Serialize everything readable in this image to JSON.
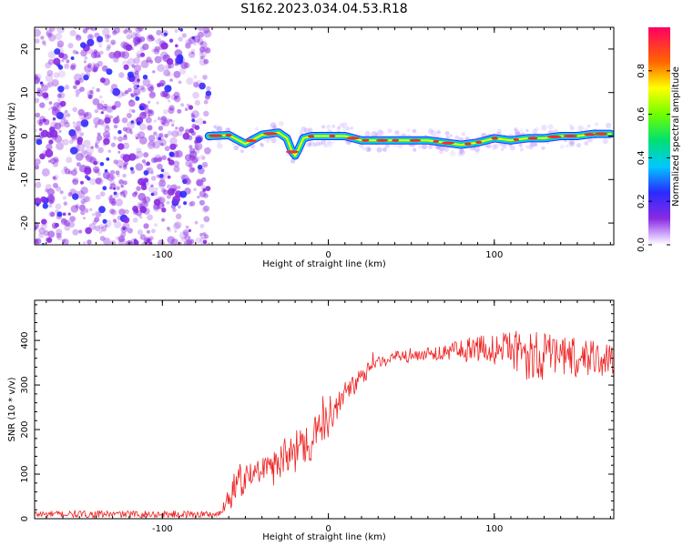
{
  "title": "S162.2023.034.04.53.R18",
  "colors": {
    "noise": "#8a2be2",
    "snr_line": "#ee2222",
    "axis": "#000000"
  },
  "chart_data": [
    {
      "type": "heatmap",
      "title": "S162.2023.034.04.53.R18",
      "xlabel": "Height of straight line (km)",
      "ylabel": "Frequency (Hz)",
      "xlim": [
        -177,
        172
      ],
      "ylim": [
        -25,
        25
      ],
      "xticks": [
        -100,
        0,
        100
      ],
      "xtick_labels": [
        "-100",
        "0",
        "100"
      ],
      "yticks": [
        -20,
        -10,
        0,
        10,
        20
      ],
      "ytick_labels": [
        "-20",
        "-10",
        "0",
        "10",
        "20"
      ],
      "noise_region_x": [
        -177,
        -72
      ],
      "signal_trace": {
        "x": [
          -72,
          -60,
          -50,
          -40,
          -30,
          -25,
          -22,
          -20,
          -18,
          -15,
          -10,
          0,
          10,
          20,
          40,
          60,
          70,
          80,
          90,
          100,
          110,
          120,
          130,
          140,
          150,
          160,
          170
        ],
        "y": [
          0,
          0.2,
          -1.8,
          0.3,
          0.8,
          -0.5,
          -3.5,
          -4.5,
          -3,
          -0.5,
          0,
          0,
          0,
          -1,
          -1,
          -1,
          -1.5,
          -2,
          -1.5,
          -0.5,
          -1,
          -0.5,
          -0.5,
          0,
          0,
          0.5,
          0.5
        ]
      },
      "colorbar": {
        "label": "Normalized spectral amplitude",
        "range": [
          0,
          1
        ],
        "ticks": [
          0.0,
          0.2,
          0.4,
          0.6,
          0.8
        ],
        "tick_labels": [
          "0.0",
          "0.2",
          "0.4",
          "0.6",
          "0.8"
        ]
      }
    },
    {
      "type": "line",
      "xlabel": "Height of straight line (km)",
      "ylabel": "SNR (10 * v/v)",
      "xlim": [
        -177,
        172
      ],
      "ylim": [
        0,
        490
      ],
      "xticks": [
        -100,
        0,
        100
      ],
      "xtick_labels": [
        "-100",
        "0",
        "100"
      ],
      "yticks": [
        0,
        100,
        200,
        300,
        400
      ],
      "ytick_labels": [
        "0",
        "100",
        "200",
        "300",
        "400"
      ],
      "x": [
        -177,
        -150,
        -120,
        -90,
        -65,
        -62,
        -58,
        -55,
        -52,
        -50,
        -45,
        -40,
        -35,
        -30,
        -25,
        -20,
        -15,
        -10,
        -5,
        0,
        5,
        10,
        15,
        20,
        30,
        40,
        50,
        60,
        70,
        80,
        90,
        100,
        110,
        120,
        130,
        140,
        150,
        160,
        172
      ],
      "values": [
        10,
        10,
        10,
        10,
        10,
        40,
        60,
        80,
        90,
        90,
        100,
        110,
        120,
        130,
        140,
        150,
        170,
        180,
        200,
        220,
        250,
        280,
        300,
        320,
        350,
        360,
        365,
        370,
        375,
        375,
        380,
        380,
        375,
        370,
        365,
        365,
        360,
        360,
        360
      ],
      "noise_amplitude": [
        8,
        8,
        8,
        8,
        8,
        20,
        40,
        40,
        40,
        30,
        30,
        30,
        30,
        40,
        40,
        50,
        50,
        50,
        40,
        40,
        30,
        30,
        25,
        20,
        15,
        15,
        15,
        15,
        20,
        25,
        30,
        35,
        45,
        60,
        55,
        50,
        45,
        40,
        40
      ]
    }
  ]
}
